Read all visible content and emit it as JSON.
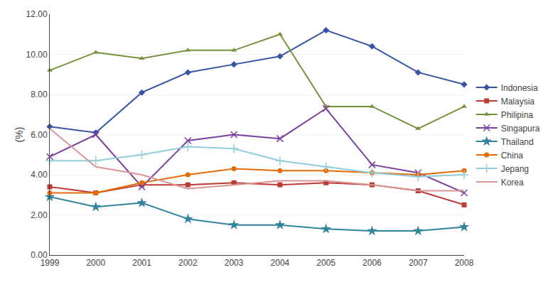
{
  "chart_data": {
    "type": "line",
    "x": [
      1999,
      2000,
      2001,
      2002,
      2003,
      2004,
      2005,
      2006,
      2007,
      2008
    ],
    "series": [
      {
        "name": "Indonesia",
        "color": "#3953A4",
        "marker": "diamond",
        "values": [
          6.4,
          6.1,
          8.1,
          9.1,
          9.5,
          9.9,
          11.2,
          10.4,
          9.1,
          8.5
        ]
      },
      {
        "name": "Malaysia",
        "color": "#BE3A34",
        "marker": "square",
        "values": [
          3.4,
          3.1,
          3.5,
          3.5,
          3.6,
          3.5,
          3.6,
          3.5,
          3.2,
          2.5
        ]
      },
      {
        "name": "Philipina",
        "color": "#76923C",
        "marker": "triangle-up",
        "values": [
          9.2,
          10.1,
          9.8,
          10.2,
          10.2,
          11.0,
          7.4,
          7.4,
          6.3,
          7.4
        ]
      },
      {
        "name": "Singapura",
        "color": "#7B3FA0",
        "marker": "x",
        "values": [
          4.9,
          6.0,
          3.4,
          5.7,
          6.0,
          5.8,
          7.3,
          4.5,
          4.1,
          3.1
        ]
      },
      {
        "name": "Thailand",
        "color": "#31849B",
        "marker": "star",
        "values": [
          2.9,
          2.4,
          2.6,
          1.8,
          1.5,
          1.5,
          1.3,
          1.2,
          1.2,
          1.4
        ]
      },
      {
        "name": "China",
        "color": "#E36C09",
        "marker": "circle",
        "values": [
          3.1,
          3.1,
          3.6,
          4.0,
          4.3,
          4.2,
          4.2,
          4.1,
          4.0,
          4.2
        ]
      },
      {
        "name": "Jepang",
        "color": "#92CDDC",
        "marker": "plus",
        "values": [
          4.7,
          4.7,
          5.0,
          5.4,
          5.3,
          4.7,
          4.4,
          4.1,
          3.9,
          4.0
        ]
      },
      {
        "name": "Korea",
        "color": "#D99694",
        "values": [
          6.3,
          4.4,
          4.0,
          3.3,
          3.5,
          3.7,
          3.7,
          3.5,
          3.2,
          3.2
        ]
      }
    ],
    "y_label": "(%)",
    "xlim": [
      1999,
      2008
    ],
    "xticks": [
      1999,
      2000,
      2001,
      2002,
      2003,
      2004,
      2005,
      2006,
      2007,
      2008
    ],
    "ylim": [
      0.0,
      12.0
    ],
    "yticks": [
      {
        "value": 0.0,
        "label": "0.00"
      },
      {
        "value": 2.0,
        "label": "2.00"
      },
      {
        "value": 4.0,
        "label": "4.00"
      },
      {
        "value": 6.0,
        "label": "6.00"
      },
      {
        "value": 8.0,
        "label": "8.00"
      },
      {
        "value": 10.0,
        "label": "10.00"
      },
      {
        "value": 12.0,
        "label": "12.00"
      }
    ],
    "grid": "y",
    "legend": "right"
  }
}
